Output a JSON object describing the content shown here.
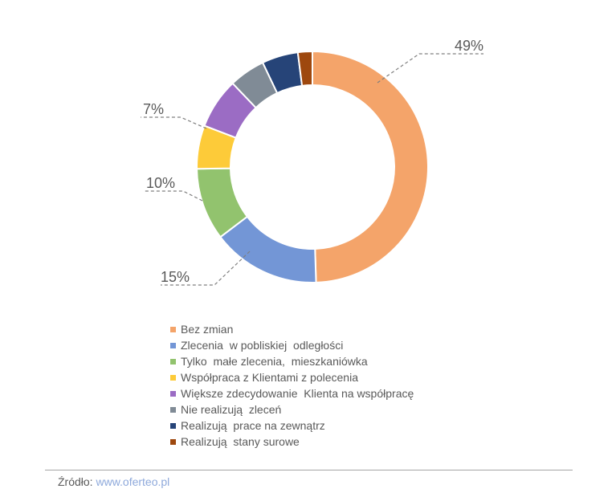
{
  "chart_data": {
    "type": "pie",
    "donut": true,
    "categories": [
      "Bez zmian",
      "Zlecenia  w pobliskiej  odległości",
      "Tylko  małe zlecenia,  mieszkaniówka",
      "Współpraca z Klientami z polecenia",
      "Większe zdecydowanie  Klienta na współpracę",
      "Nie realizują  zleceń",
      "Realizują  prace na zewnątrz",
      "Realizują  stany surowe"
    ],
    "values": [
      49,
      15,
      10,
      6,
      7,
      5,
      5,
      2
    ],
    "labels": [
      "49%",
      "15%",
      "10%",
      "",
      "7%",
      "",
      "",
      ""
    ],
    "colors": [
      "#F4A46A",
      "#7396D6",
      "#92C36E",
      "#FDCB39",
      "#9B6CC4",
      "#808B96",
      "#264478",
      "#9E480E"
    ],
    "legend_position": "bottom"
  },
  "source": {
    "label": "Źródło:",
    "link": "www.oferteo.pl"
  }
}
